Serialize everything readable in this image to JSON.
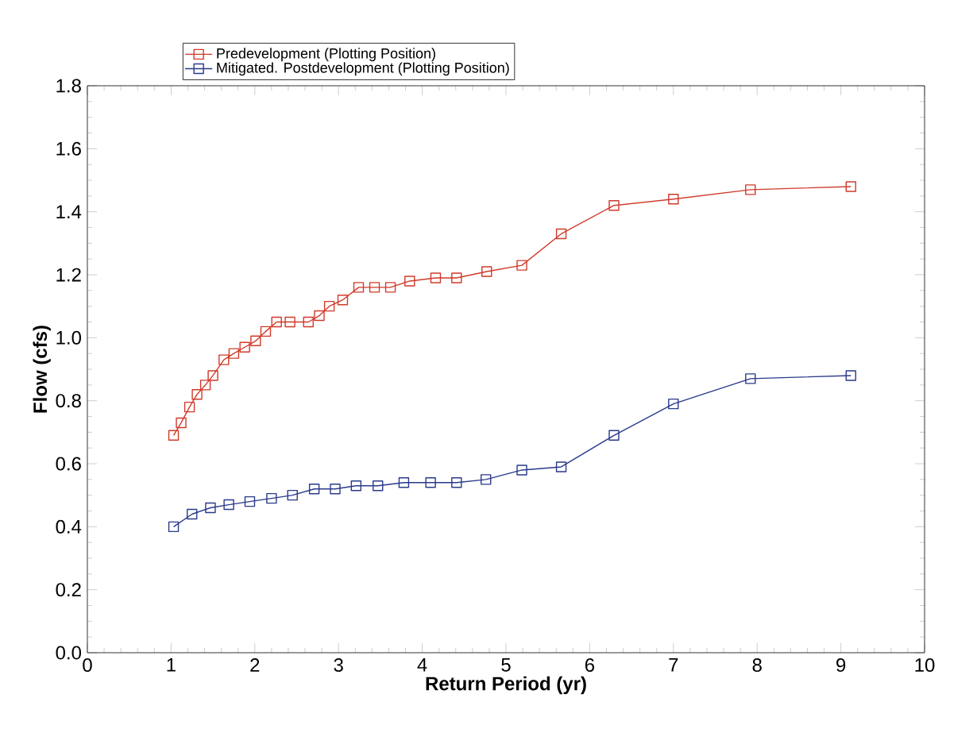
{
  "chart_data": {
    "type": "line",
    "xlabel": "Return Period (yr)",
    "ylabel": "Flow (cfs)",
    "xlim": [
      0,
      10
    ],
    "xticks": [
      0,
      1,
      2,
      3,
      4,
      5,
      6,
      7,
      8,
      9,
      10
    ],
    "ylim": [
      0,
      1.8
    ],
    "yticks": [
      {
        "value": 0,
        "label": "0.0"
      },
      0.2,
      0.4,
      0.6,
      0.8,
      {
        "value": 1,
        "label": "1.0"
      },
      1.2,
      1.4,
      1.6,
      1.8
    ],
    "marker": "square",
    "line_style": "solid",
    "grid": false,
    "legend": "top left",
    "series": [
      {
        "name": "Predevelopment (Plotting Position)",
        "color": "#d03a2a",
        "x": [
          1.03,
          1.12,
          1.22,
          1.31,
          1.41,
          1.5,
          1.63,
          1.75,
          1.88,
          2.01,
          2.13,
          2.26,
          2.42,
          2.64,
          2.77,
          2.89,
          3.05,
          3.24,
          3.43,
          3.62,
          3.85,
          4.16,
          4.41,
          4.77,
          5.19,
          5.66,
          6.29,
          7.0,
          7.92,
          9.12
        ],
        "values": [
          0.69,
          0.73,
          0.78,
          0.82,
          0.85,
          0.88,
          0.93,
          0.95,
          0.97,
          0.99,
          1.02,
          1.05,
          1.05,
          1.05,
          1.07,
          1.1,
          1.12,
          1.16,
          1.16,
          1.16,
          1.18,
          1.19,
          1.19,
          1.21,
          1.23,
          1.33,
          1.42,
          1.44,
          1.47,
          1.48
        ]
      },
      {
        "name": "Mitigated. Postdevelopment (Plotting Position)",
        "color": "#2a3a8a",
        "x": [
          1.03,
          1.25,
          1.47,
          1.69,
          1.94,
          2.2,
          2.45,
          2.71,
          2.96,
          3.21,
          3.47,
          3.78,
          4.1,
          4.41,
          4.76,
          5.19,
          5.66,
          6.29,
          7.0,
          7.92,
          9.12
        ],
        "values": [
          0.4,
          0.44,
          0.46,
          0.47,
          0.48,
          0.49,
          0.5,
          0.52,
          0.52,
          0.53,
          0.53,
          0.54,
          0.54,
          0.54,
          0.55,
          0.58,
          0.59,
          0.69,
          0.79,
          0.87,
          0.88
        ]
      }
    ]
  }
}
